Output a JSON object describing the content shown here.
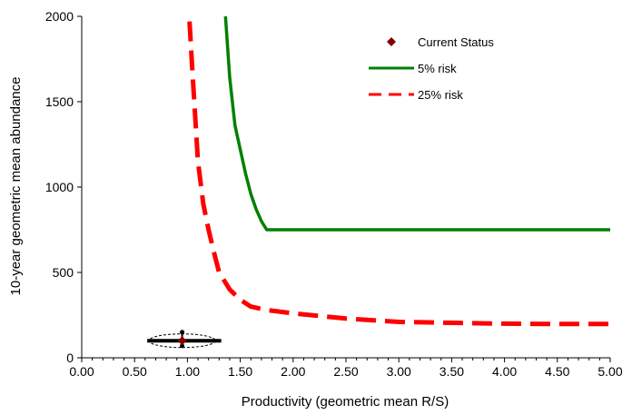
{
  "chart_data": {
    "type": "line",
    "title": "",
    "xlabel": "Productivity (geometric mean R/S)",
    "ylabel": "10-year geometric mean abundance",
    "xlim": [
      0,
      5
    ],
    "ylim": [
      0,
      2000
    ],
    "xticks": [
      "0.00",
      "0.50",
      "1.00",
      "1.50",
      "2.00",
      "2.50",
      "3.00",
      "3.50",
      "4.00",
      "4.50",
      "5.00"
    ],
    "yticks": [
      "0",
      "500",
      "1000",
      "1500",
      "2000"
    ],
    "grid": false,
    "legend_position": "top-right",
    "series": [
      {
        "name": "5% risk",
        "color": "#008000",
        "style": "solid",
        "x": [
          1.36,
          1.4,
          1.45,
          1.5,
          1.55,
          1.6,
          1.65,
          1.7,
          1.75,
          1.8,
          2.0,
          2.5,
          3.0,
          3.5,
          4.0,
          4.5,
          5.0
        ],
        "y": [
          2000,
          1640,
          1360,
          1220,
          1080,
          960,
          870,
          800,
          750,
          750,
          750,
          750,
          750,
          750,
          750,
          750,
          750
        ]
      },
      {
        "name": "25% risk",
        "color": "#ff0000",
        "style": "dashed",
        "x": [
          1.02,
          1.05,
          1.1,
          1.15,
          1.2,
          1.25,
          1.3,
          1.4,
          1.5,
          1.6,
          1.75,
          2.0,
          2.5,
          3.0,
          3.5,
          4.0,
          4.5,
          5.0
        ],
        "y": [
          1970,
          1650,
          1150,
          900,
          750,
          620,
          500,
          400,
          340,
          300,
          280,
          260,
          230,
          210,
          205,
          200,
          198,
          198
        ]
      }
    ],
    "current_status": {
      "name": "Current Status",
      "color": "#800000",
      "marker": "diamond",
      "x": 0.95,
      "y": 100,
      "x_range": [
        0.62,
        1.32
      ],
      "y_range": [
        70,
        150
      ]
    }
  }
}
